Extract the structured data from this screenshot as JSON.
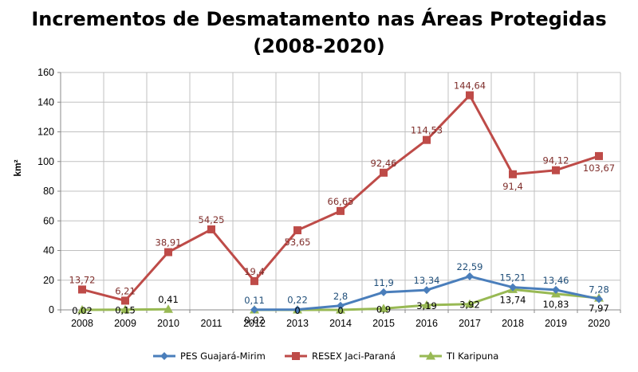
{
  "chart_data": {
    "type": "line",
    "title_line1": "Incrementos de Desmatamento nas Áreas Protegidas",
    "title_line2": "(2008-2020)",
    "xlabel": "",
    "ylabel": "km²",
    "ylim": [
      0,
      160
    ],
    "yticks": [
      "0",
      "20",
      "40",
      "60",
      "80",
      "100",
      "120",
      "140",
      "160"
    ],
    "grid": true,
    "legend_position": "bottom",
    "categories": [
      "2008",
      "2009",
      "2010",
      "2011",
      "2012",
      "2013",
      "2014",
      "2015",
      "2016",
      "2017",
      "2018",
      "2019",
      "2020"
    ],
    "series": [
      {
        "name": "PES Guajará-Mirim",
        "color": "#4a7ebb",
        "marker": "diamond",
        "values": [
          null,
          null,
          null,
          null,
          0.11,
          0.22,
          2.8,
          11.9,
          13.34,
          22.59,
          15.21,
          13.46,
          7.28
        ],
        "labels": [
          null,
          null,
          null,
          null,
          "0,11",
          "0,22",
          "2,8",
          "11,9",
          "13,34",
          "22,59",
          "15,21",
          "13,46",
          "7,28"
        ]
      },
      {
        "name": "RESEX Jaci-Paraná",
        "color": "#be4b48",
        "marker": "square",
        "values": [
          13.72,
          6.21,
          38.91,
          54.25,
          19.4,
          53.65,
          66.65,
          92.46,
          114.53,
          144.64,
          91.4,
          94.12,
          103.67
        ],
        "labels": [
          "13,72",
          "6,21",
          "38,91",
          "54,25",
          "19,4",
          "53,65",
          "66,65",
          "92,46",
          "114,53",
          "144,64",
          "91,4",
          "94,12",
          "103,67"
        ]
      },
      {
        "name": "TI Karipuna",
        "color": "#98b954",
        "marker": "triangle",
        "values": [
          0.02,
          0.15,
          0.41,
          null,
          0.02,
          0,
          0,
          0.9,
          3.19,
          3.92,
          13.74,
          10.83,
          7.97
        ],
        "labels": [
          "0,02",
          "0,15",
          "0,41",
          null,
          "0,02",
          "0",
          "0",
          "0,9",
          "3,19",
          "3,92",
          "13,74",
          "10,83",
          "7,97"
        ]
      }
    ]
  }
}
